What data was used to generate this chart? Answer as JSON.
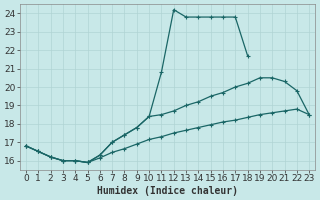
{
  "xlabel": "Humidex (Indice chaleur)",
  "ylabel": "",
  "xlim": [
    -0.5,
    23.5
  ],
  "ylim": [
    15.5,
    24.5
  ],
  "xticks": [
    0,
    1,
    2,
    3,
    4,
    5,
    6,
    7,
    8,
    9,
    10,
    11,
    12,
    13,
    14,
    15,
    16,
    17,
    18,
    19,
    20,
    21,
    22,
    23
  ],
  "yticks": [
    16,
    17,
    18,
    19,
    20,
    21,
    22,
    23,
    24
  ],
  "bg_color": "#c8e8e8",
  "grid_color": "#b0d4d4",
  "line_color": "#1a6666",
  "curve1_x": [
    0,
    1,
    2,
    3,
    4,
    5,
    6,
    7,
    8,
    9,
    10,
    11,
    12,
    13,
    14,
    15,
    16,
    17,
    18
  ],
  "curve1_y": [
    16.8,
    16.5,
    16.2,
    16.0,
    16.0,
    15.9,
    16.3,
    17.0,
    17.4,
    17.8,
    18.4,
    20.8,
    24.2,
    23.8,
    23.8,
    23.8,
    23.8,
    23.8,
    21.7
  ],
  "curve2_x": [
    0,
    1,
    2,
    3,
    4,
    5,
    6,
    7,
    8,
    9,
    10,
    11,
    12,
    13,
    14,
    15,
    16,
    17,
    18,
    19,
    20,
    21,
    22,
    23
  ],
  "curve2_y": [
    16.8,
    16.5,
    16.2,
    16.0,
    16.0,
    15.9,
    16.3,
    17.0,
    17.4,
    17.8,
    18.4,
    18.5,
    18.7,
    19.0,
    19.2,
    19.5,
    19.7,
    20.0,
    20.2,
    20.5,
    20.5,
    20.3,
    19.8,
    18.5
  ],
  "curve3_x": [
    0,
    1,
    2,
    3,
    4,
    5,
    6,
    7,
    8,
    9,
    10,
    11,
    12,
    13,
    14,
    15,
    16,
    17,
    18,
    19,
    20,
    21,
    22,
    23
  ],
  "curve3_y": [
    16.8,
    16.5,
    16.2,
    16.0,
    16.0,
    15.9,
    16.15,
    16.45,
    16.65,
    16.9,
    17.15,
    17.3,
    17.5,
    17.65,
    17.8,
    17.95,
    18.1,
    18.2,
    18.35,
    18.5,
    18.6,
    18.7,
    18.8,
    18.5
  ],
  "fontsize_label": 7,
  "fontsize_tick": 6.5,
  "marker": "+",
  "markersize": 3.5,
  "linewidth": 0.9
}
